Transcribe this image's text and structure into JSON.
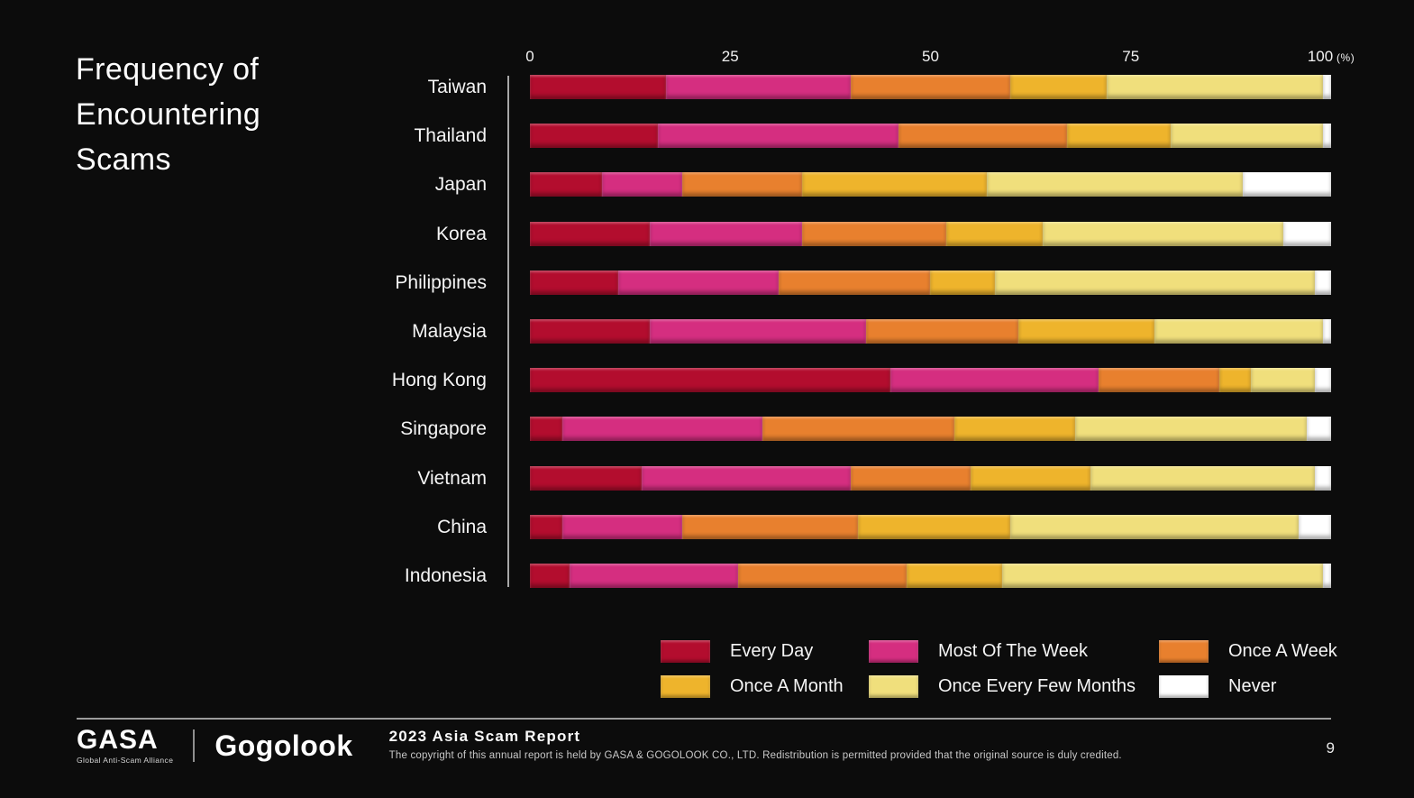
{
  "title": "Frequency of\nEncountering\nScams",
  "chart_data": {
    "type": "bar",
    "stacked": true,
    "orientation": "horizontal",
    "title": "Frequency of Encountering Scams",
    "unit": "%",
    "xlim": [
      0,
      100
    ],
    "x_ticks": [
      0,
      25,
      50,
      75,
      100
    ],
    "x_axis_suffix": "(%)",
    "grid": false,
    "legend_position": "bottom-right",
    "categories": [
      "Taiwan",
      "Thailand",
      "Japan",
      "Korea",
      "Philippines",
      "Malaysia",
      "Hong Kong",
      "Singapore",
      "Vietnam",
      "China",
      "Indonesia"
    ],
    "series": [
      {
        "name": "Every Day",
        "color": "#b30d2e",
        "values": [
          17,
          16,
          9,
          15,
          11,
          15,
          45,
          4,
          14,
          4,
          5
        ]
      },
      {
        "name": "Most Of The Week",
        "color": "#d52e80",
        "values": [
          23,
          30,
          10,
          19,
          20,
          27,
          26,
          25,
          26,
          15,
          21
        ]
      },
      {
        "name": "Once A Week",
        "color": "#e8802e",
        "values": [
          20,
          21,
          15,
          18,
          19,
          19,
          15,
          24,
          15,
          22,
          21
        ]
      },
      {
        "name": "Once A Month",
        "color": "#eeb42c",
        "values": [
          12,
          13,
          23,
          12,
          8,
          17,
          4,
          15,
          15,
          19,
          12
        ]
      },
      {
        "name": "Once Every Few Months",
        "color": "#f0df7c",
        "values": [
          27,
          19,
          32,
          30,
          40,
          21,
          8,
          29,
          28,
          36,
          40
        ]
      },
      {
        "name": "Never",
        "color": "#ffffff",
        "values": [
          1,
          1,
          11,
          6,
          2,
          1,
          2,
          3,
          2,
          4,
          1
        ]
      }
    ]
  },
  "footer": {
    "gasa_logo": "GASA",
    "gasa_tagline": "Global Anti-Scam Alliance",
    "gogolook_logo": "Gogolook",
    "report_title": "2023 Asia Scam Report",
    "copyright": "The copyright of this annual report is held by GASA & GOGOLOOK CO., LTD. Redistribution is permitted provided that the original source is duly credited.",
    "page_number": "9"
  }
}
